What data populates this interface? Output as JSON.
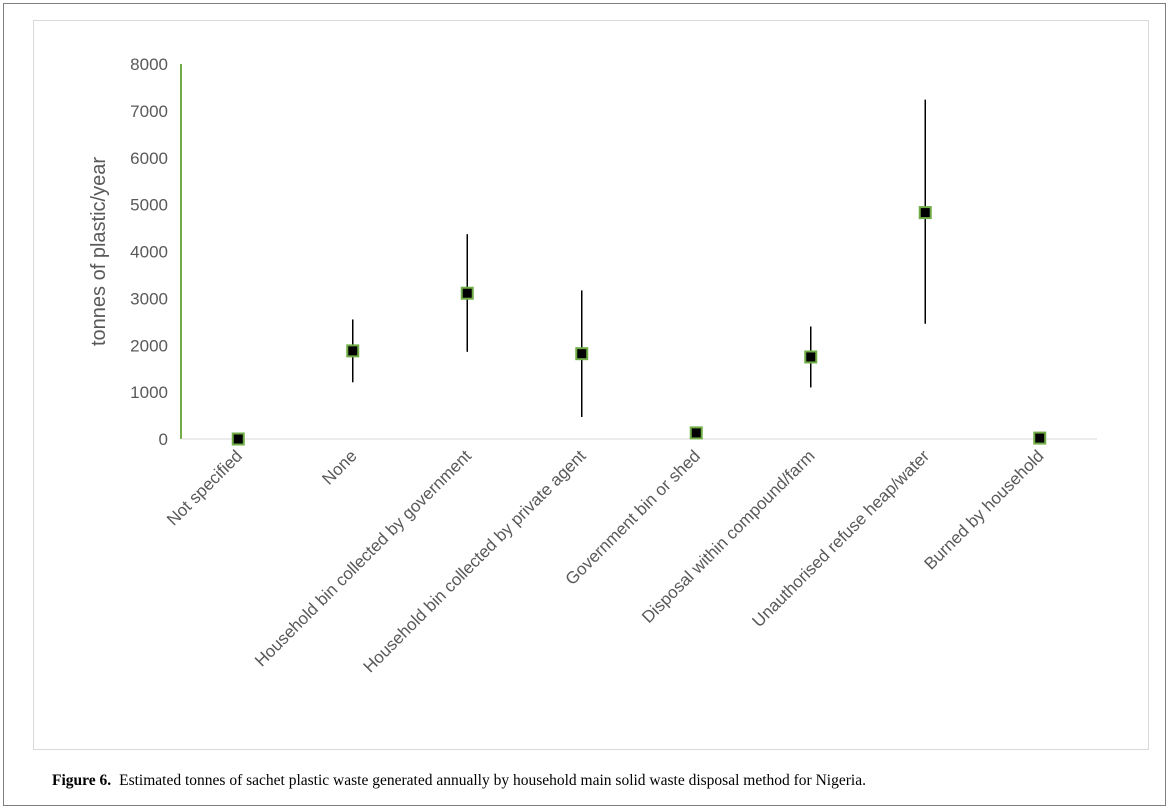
{
  "caption": {
    "label": "Figure 6.",
    "text": "Estimated tonnes of sachet plastic waste generated annually by household main solid waste disposal method for Nigeria."
  },
  "chart_data": {
    "type": "scatter",
    "title": "",
    "xlabel": "",
    "ylabel": "tonnes of plastic/year",
    "ylim": [
      0,
      8000
    ],
    "yticks": [
      0,
      1000,
      2000,
      3000,
      4000,
      5000,
      6000,
      7000,
      8000
    ],
    "grid": false,
    "legend": "none",
    "categories": [
      "Not specified",
      "None",
      "Household bin collected by government",
      "Household bin collected by private agent",
      "Government bin or shed",
      "Disposal within compound/farm",
      "Unauthorised refuse heap/water",
      "Burned by household"
    ],
    "values": [
      0,
      1880,
      3110,
      1820,
      130,
      1750,
      4830,
      20
    ],
    "error_low": [
      0,
      1210,
      1860,
      470,
      130,
      1100,
      2460,
      20
    ],
    "error_high": [
      0,
      2550,
      4370,
      3170,
      130,
      2400,
      7240,
      20
    ],
    "colors": {
      "marker_fill": "#000000",
      "marker_edge": "#70ad47",
      "axis": "#70ad47",
      "error_bar": "#000000"
    }
  }
}
